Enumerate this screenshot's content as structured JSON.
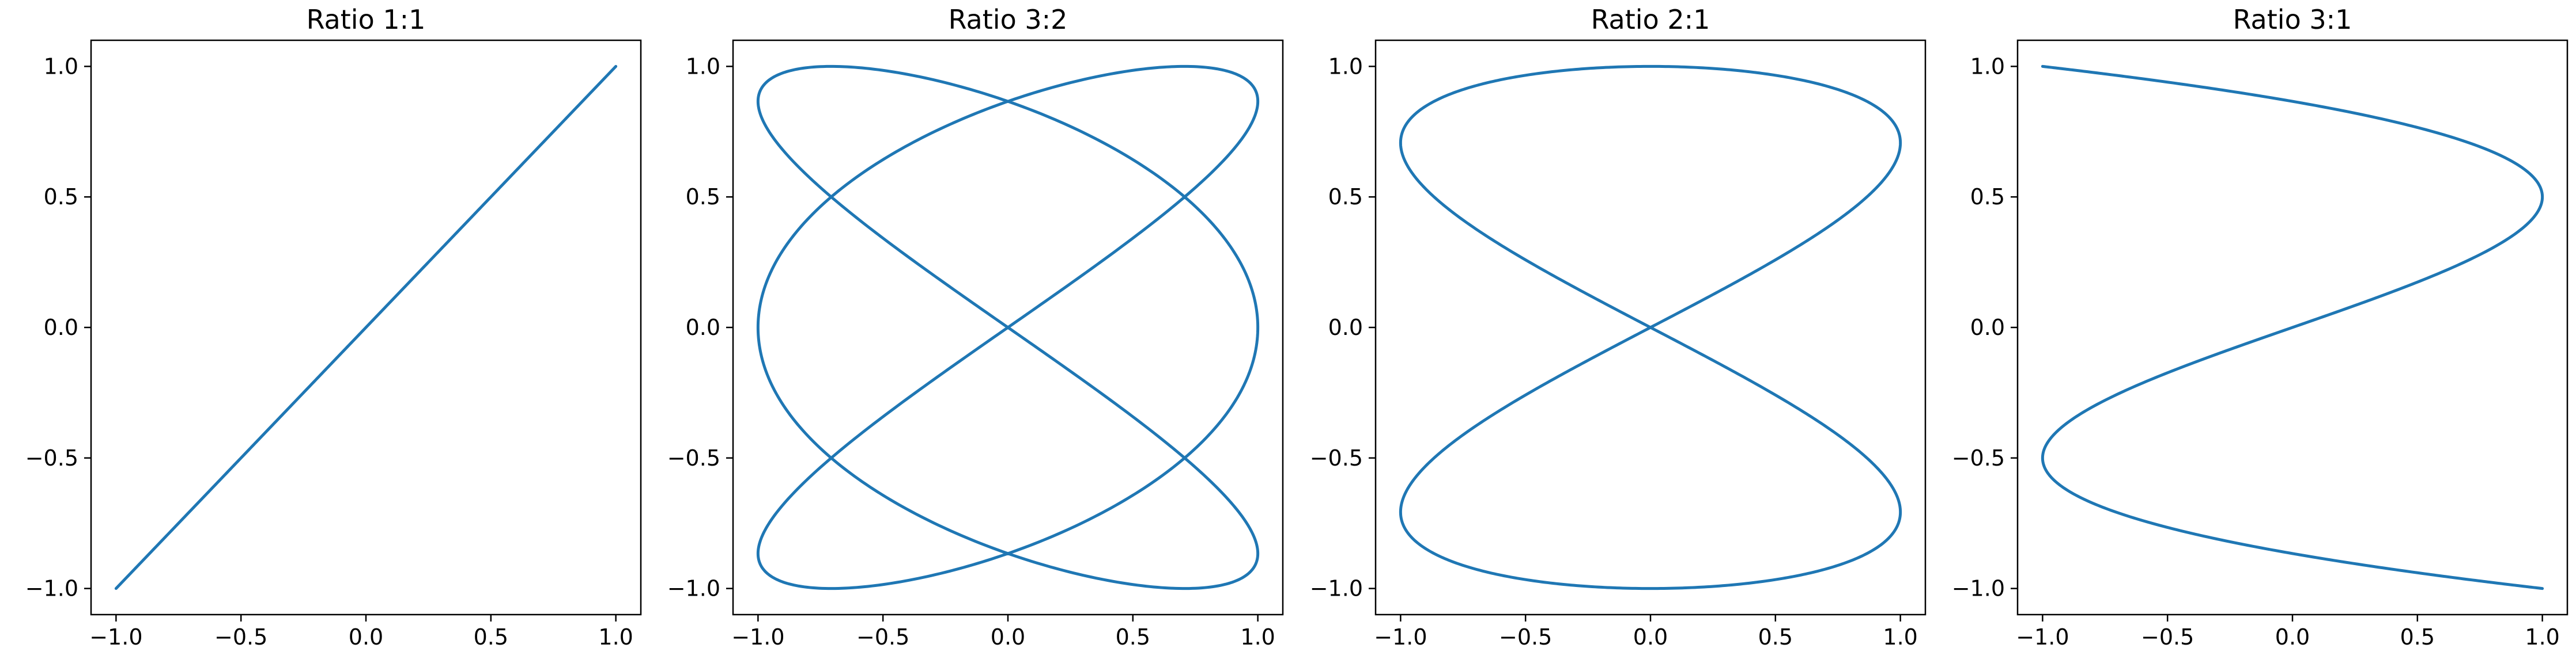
{
  "chart_data": [
    {
      "type": "line",
      "title": "Ratio 1:1",
      "parametric": {
        "a": 1,
        "b": 1,
        "delta": 0
      },
      "samples": 1000,
      "xlim": [
        -1.1,
        1.1
      ],
      "ylim": [
        -1.1,
        1.1
      ],
      "xticks": [
        -1.0,
        -0.5,
        0.0,
        0.5,
        1.0
      ],
      "yticks": [
        -1.0,
        -0.5,
        0.0,
        0.5,
        1.0
      ],
      "xtick_labels": [
        "−1.0",
        "−0.5",
        "0.0",
        "0.5",
        "1.0"
      ],
      "ytick_labels": [
        "−1.0",
        "−0.5",
        "0.0",
        "0.5",
        "1.0"
      ],
      "xlabel": "",
      "ylabel": "",
      "grid": false,
      "color": "#1f77b4"
    },
    {
      "type": "line",
      "title": "Ratio 3:2",
      "parametric": {
        "a": 3,
        "b": 2,
        "delta": 0
      },
      "samples": 1000,
      "xlim": [
        -1.1,
        1.1
      ],
      "ylim": [
        -1.1,
        1.1
      ],
      "xticks": [
        -1.0,
        -0.5,
        0.0,
        0.5,
        1.0
      ],
      "yticks": [
        -1.0,
        -0.5,
        0.0,
        0.5,
        1.0
      ],
      "xtick_labels": [
        "−1.0",
        "−0.5",
        "0.0",
        "0.5",
        "1.0"
      ],
      "ytick_labels": [
        "−1.0",
        "−0.5",
        "0.0",
        "0.5",
        "1.0"
      ],
      "xlabel": "",
      "ylabel": "",
      "grid": false,
      "color": "#1f77b4"
    },
    {
      "type": "line",
      "title": "Ratio 2:1",
      "parametric": {
        "a": 2,
        "b": 1,
        "delta": 0
      },
      "samples": 1000,
      "xlim": [
        -1.1,
        1.1
      ],
      "ylim": [
        -1.1,
        1.1
      ],
      "xticks": [
        -1.0,
        -0.5,
        0.0,
        0.5,
        1.0
      ],
      "yticks": [
        -1.0,
        -0.5,
        0.0,
        0.5,
        1.0
      ],
      "xtick_labels": [
        "−1.0",
        "−0.5",
        "0.0",
        "0.5",
        "1.0"
      ],
      "ytick_labels": [
        "−1.0",
        "−0.5",
        "0.0",
        "0.5",
        "1.0"
      ],
      "xlabel": "",
      "ylabel": "",
      "grid": false,
      "color": "#1f77b4"
    },
    {
      "type": "line",
      "title": "Ratio 3:1",
      "parametric": {
        "a": 3,
        "b": 1,
        "delta": 0
      },
      "samples": 1000,
      "xlim": [
        -1.1,
        1.1
      ],
      "ylim": [
        -1.1,
        1.1
      ],
      "xticks": [
        -1.0,
        -0.5,
        0.0,
        0.5,
        1.0
      ],
      "yticks": [
        -1.0,
        -0.5,
        0.0,
        0.5,
        1.0
      ],
      "xtick_labels": [
        "−1.0",
        "−0.5",
        "0.0",
        "0.5",
        "1.0"
      ],
      "ytick_labels": [
        "−1.0",
        "−0.5",
        "0.0",
        "0.5",
        "1.0"
      ],
      "xlabel": "",
      "ylabel": "",
      "grid": false,
      "color": "#1f77b4"
    }
  ]
}
